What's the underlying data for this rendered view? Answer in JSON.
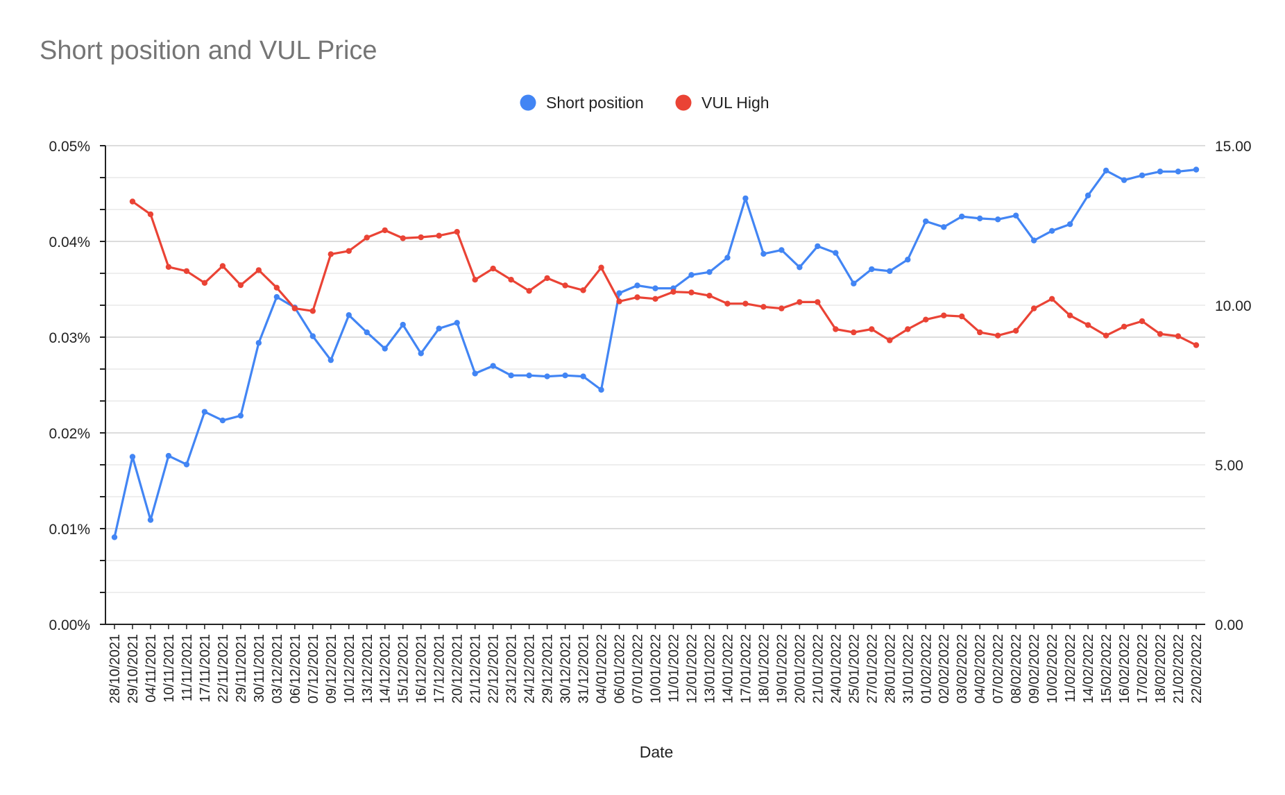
{
  "chart_data": {
    "type": "line",
    "title": "Short position and VUL Price",
    "xlabel": "Date",
    "ylabel": "",
    "y2label": "",
    "legend_position": "top",
    "grid": true,
    "ylim": [
      0,
      0.05
    ],
    "y2lim": [
      0,
      15
    ],
    "y_ticks": [
      "0.00%",
      "0.01%",
      "0.02%",
      "0.03%",
      "0.04%",
      "0.05%"
    ],
    "y2_ticks": [
      "0.00",
      "5.00",
      "10.00",
      "15.00"
    ],
    "categories": [
      "28/10/2021",
      "29/10/2021",
      "04/11/2021",
      "10/11/2021",
      "11/11/2021",
      "17/11/2021",
      "22/11/2021",
      "29/11/2021",
      "30/11/2021",
      "03/12/2021",
      "06/12/2021",
      "07/12/2021",
      "09/12/2021",
      "10/12/2021",
      "13/12/2021",
      "14/12/2021",
      "15/12/2021",
      "16/12/2021",
      "17/12/2021",
      "20/12/2021",
      "21/12/2021",
      "22/12/2021",
      "23/12/2021",
      "24/12/2021",
      "29/12/2021",
      "30/12/2021",
      "31/12/2021",
      "04/01/2022",
      "06/01/2022",
      "07/01/2022",
      "10/01/2022",
      "11/01/2022",
      "12/01/2022",
      "13/01/2022",
      "14/01/2022",
      "17/01/2022",
      "18/01/2022",
      "19/01/2022",
      "20/01/2022",
      "21/01/2022",
      "24/01/2022",
      "25/01/2022",
      "27/01/2022",
      "28/01/2022",
      "31/01/2022",
      "01/02/2022",
      "02/02/2022",
      "03/02/2022",
      "04/02/2022",
      "07/02/2022",
      "08/02/2022",
      "09/02/2022",
      "10/02/2022",
      "11/02/2022",
      "14/02/2022",
      "15/02/2022",
      "16/02/2022",
      "17/02/2022",
      "18/02/2022",
      "21/02/2022",
      "22/02/2022"
    ],
    "series": [
      {
        "name": "Short position",
        "axis": "left",
        "color": "#4285f4",
        "values": [
          0.0091,
          0.0175,
          0.0109,
          0.0176,
          0.0167,
          0.0222,
          0.0213,
          0.0218,
          0.0294,
          0.0342,
          0.0331,
          0.0301,
          0.0276,
          0.0323,
          0.0305,
          0.0288,
          0.0313,
          0.0283,
          0.0309,
          0.0315,
          0.0262,
          0.027,
          0.026,
          0.026,
          0.0259,
          0.026,
          0.0259,
          0.0245,
          0.0346,
          0.0354,
          0.0351,
          0.0351,
          0.0365,
          0.0368,
          0.0383,
          0.0445,
          0.0387,
          0.0391,
          0.0373,
          0.0395,
          0.0388,
          0.0356,
          0.0371,
          0.0369,
          0.0381,
          0.0421,
          0.0415,
          0.0426,
          0.0424,
          0.0423,
          0.0427,
          0.0401,
          0.0411,
          0.0418,
          0.0448,
          0.0474,
          0.0464,
          0.0469,
          0.0473,
          0.0473,
          0.0475
        ]
      },
      {
        "name": "VUL High",
        "axis": "right",
        "color": "#ea4335",
        "values": [
          null,
          13.25,
          12.85,
          11.2,
          11.07,
          10.7,
          11.23,
          10.63,
          11.1,
          10.55,
          9.9,
          9.82,
          11.6,
          11.7,
          12.12,
          12.35,
          12.1,
          12.13,
          12.18,
          12.3,
          10.8,
          11.15,
          10.8,
          10.45,
          10.85,
          10.62,
          10.47,
          11.18,
          10.12,
          10.25,
          10.2,
          10.42,
          10.4,
          10.3,
          10.05,
          10.05,
          9.95,
          9.9,
          10.1,
          10.1,
          9.25,
          9.15,
          9.25,
          8.9,
          9.25,
          9.55,
          9.68,
          9.65,
          9.15,
          9.05,
          9.2,
          9.9,
          10.2,
          9.68,
          9.38,
          9.05,
          9.33,
          9.5,
          9.1,
          9.03,
          8.75
        ]
      }
    ]
  }
}
